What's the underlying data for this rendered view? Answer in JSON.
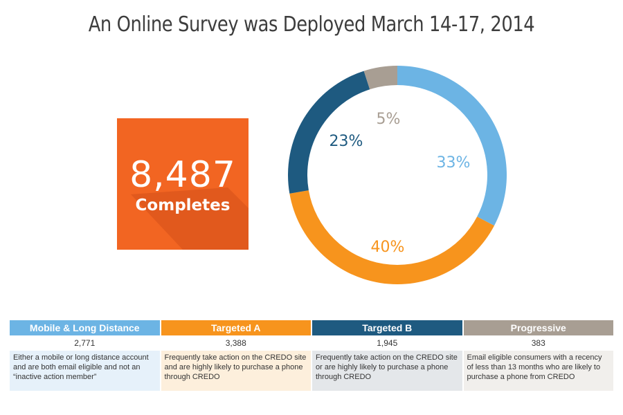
{
  "title": "An Online Survey was Deployed March 14-17, 2014",
  "completes": {
    "number": "8,487",
    "label": "Completes"
  },
  "colors": {
    "mobile": "#6cb4e4",
    "targeted_a": "#f7941d",
    "targeted_b": "#1e5a80",
    "progressive": "#a89e93",
    "box": "#f26522"
  },
  "chart_data": {
    "type": "pie",
    "subtype": "donut",
    "title": "",
    "slices": [
      {
        "name": "Mobile & Long Distance",
        "value": 33,
        "label": "33%",
        "color": "#6cb4e4",
        "label_color": "#6cb4e4"
      },
      {
        "name": "Targeted A",
        "value": 40,
        "label": "40%",
        "color": "#f7941d",
        "label_color": "#f7941d"
      },
      {
        "name": "Targeted B",
        "value": 23,
        "label": "23%",
        "color": "#1e5a80",
        "label_color": "#1e5a80"
      },
      {
        "name": "Progressive",
        "value": 5,
        "label": "5%",
        "color": "#a89e93",
        "label_color": "#a89e93"
      }
    ]
  },
  "table": [
    {
      "header": "Mobile & Long Distance",
      "count": "2,771",
      "description": "Either a mobile or long distance account and are both email  eligible and not an “inactive action member”",
      "head_color": "#6cb4e4",
      "desc_bg": "#e6f1fa"
    },
    {
      "header": "Targeted A",
      "count": "3,388",
      "description": "Frequently take action on the CREDO site and are highly likely to purchase a phone through CREDO",
      "head_color": "#f7941d",
      "desc_bg": "#fdefdc"
    },
    {
      "header": "Targeted B",
      "count": "1,945",
      "description": "Frequently take action on the CREDO site or are highly likely to purchase a phone through CREDO",
      "head_color": "#1e5a80",
      "desc_bg": "#e4e7ea"
    },
    {
      "header": "Progressive",
      "count": "383",
      "description": "Email eligible consumers with a recency of less than 13 months who are likely to purchase a phone from CREDO",
      "head_color": "#a89e93",
      "desc_bg": "#f1efec"
    }
  ]
}
